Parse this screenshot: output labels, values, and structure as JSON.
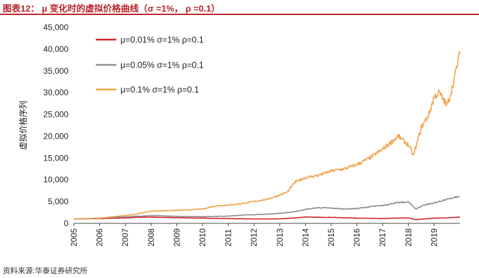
{
  "header": {
    "title": "图表12：  μ 变化时的虚拟价格曲线（σ =1%， ρ =0.1）"
  },
  "source": "资料来源:华泰证券研究所",
  "colors": {
    "accent": "#b8242a",
    "series1": "#d2232a",
    "series2": "#8c8c8c",
    "series3": "#f2a24a"
  },
  "chart_data": {
    "type": "line",
    "title": "μ 变化时的虚拟价格曲线（σ =1%， ρ =0.1）",
    "xlabel": "",
    "ylabel": "虚拟价格序列",
    "ylim": [
      0,
      45000
    ],
    "yticks": [
      "0",
      "5,000",
      "10,000",
      "15,000",
      "20,000",
      "25,000",
      "30,000",
      "35,000",
      "40,000",
      "45,000"
    ],
    "xticks": [
      "2005",
      "2006",
      "2007",
      "2008",
      "2009",
      "2010",
      "2011",
      "2012",
      "2013",
      "2014",
      "2015",
      "2016",
      "2017",
      "2018",
      "2019"
    ],
    "xlim": [
      2005,
      2020
    ],
    "legend_position": "top-left",
    "series": [
      {
        "name": "μ=0.01% σ=1% ρ=0.1",
        "color": "#d2232a",
        "x": [
          2005,
          2006,
          2007,
          2007.5,
          2008,
          2008.5,
          2009,
          2009.5,
          2010,
          2010.5,
          2011,
          2011.5,
          2012,
          2012.5,
          2013,
          2013.5,
          2014,
          2014.5,
          2015,
          2015.5,
          2016,
          2016.5,
          2017,
          2017.5,
          2018,
          2018.3,
          2018.6,
          2019,
          2019.5,
          2020
        ],
        "y": [
          1000,
          1100,
          1250,
          1400,
          1450,
          1350,
          1300,
          1250,
          1200,
          1150,
          1100,
          1050,
          1000,
          1000,
          1050,
          1200,
          1450,
          1400,
          1350,
          1300,
          1200,
          1150,
          1100,
          1200,
          1250,
          850,
          1000,
          1200,
          1250,
          1450
        ]
      },
      {
        "name": "μ=0.05% σ=1% ρ=0.1",
        "color": "#8c8c8c",
        "x": [
          2005,
          2006,
          2007,
          2008,
          2008.5,
          2009,
          2010,
          2011,
          2011.5,
          2012,
          2012.5,
          2013,
          2013.5,
          2014,
          2014.5,
          2015,
          2015.5,
          2016,
          2016.5,
          2017,
          2017.5,
          2018,
          2018.3,
          2018.6,
          2019,
          2019.5,
          2020
        ],
        "y": [
          1000,
          1200,
          1500,
          1800,
          1700,
          1600,
          1550,
          1650,
          1900,
          2000,
          2100,
          2300,
          2600,
          3200,
          3600,
          3500,
          3300,
          3400,
          3800,
          4100,
          4700,
          4900,
          3300,
          4200,
          4700,
          5500,
          6200
        ]
      },
      {
        "name": "μ=0.1% σ=1% ρ=0.1",
        "color": "#f2a24a",
        "x": [
          2005,
          2006,
          2007,
          2007.5,
          2008,
          2008.5,
          2009,
          2009.5,
          2010,
          2010.5,
          2011,
          2011.5,
          2012,
          2012.5,
          2013,
          2013.3,
          2013.6,
          2014,
          2014.5,
          2015,
          2015.5,
          2016,
          2016.5,
          2017,
          2017.3,
          2017.6,
          2018,
          2018.2,
          2018.5,
          2018.8,
          2019,
          2019.2,
          2019.5,
          2019.7,
          2020
        ],
        "y": [
          1000,
          1200,
          1800,
          2200,
          2800,
          2900,
          3000,
          3100,
          3300,
          4000,
          4200,
          4500,
          5000,
          5500,
          6500,
          7200,
          9500,
          10500,
          11000,
          12000,
          12500,
          13500,
          15000,
          17000,
          18500,
          20000,
          18000,
          15500,
          22000,
          25000,
          29000,
          30000,
          27000,
          31000,
          39000
        ]
      }
    ]
  }
}
